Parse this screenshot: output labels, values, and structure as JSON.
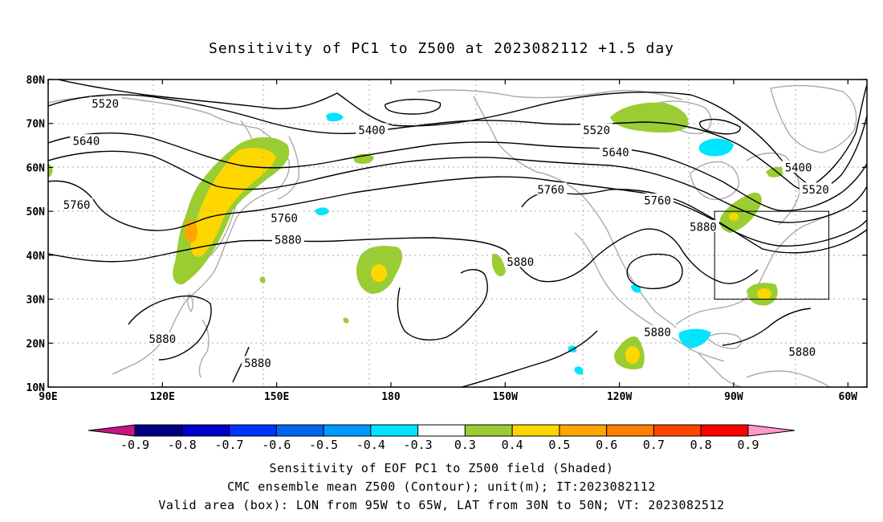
{
  "title": "Sensitivity of PC1 to Z500 at 2023082112 +1.5 day",
  "map": {
    "lat_labels": [
      "80N",
      "70N",
      "60N",
      "50N",
      "40N",
      "30N",
      "20N",
      "10N"
    ],
    "lon_labels": [
      "90E",
      "120E",
      "150E",
      "180",
      "150W",
      "120W",
      "90W",
      "60W"
    ],
    "contour_labels": [
      {
        "text": "5520",
        "lon": 105,
        "lat": 74.5
      },
      {
        "text": "5400",
        "lon": 175,
        "lat": 68.5
      },
      {
        "text": "5520",
        "lon": 234,
        "lat": 68.5
      },
      {
        "text": "5640",
        "lon": 100,
        "lat": 66
      },
      {
        "text": "5640",
        "lon": 239,
        "lat": 63.5
      },
      {
        "text": "5760",
        "lon": 222,
        "lat": 55
      },
      {
        "text": "5760",
        "lon": 250,
        "lat": 52.5
      },
      {
        "text": "5760",
        "lon": 97.5,
        "lat": 51.5
      },
      {
        "text": "5760",
        "lon": 152,
        "lat": 48.5
      },
      {
        "text": "5880",
        "lon": 153,
        "lat": 43.5
      },
      {
        "text": "5880",
        "lon": 262,
        "lat": 46.5
      },
      {
        "text": "5880",
        "lon": 214,
        "lat": 38.5
      },
      {
        "text": "5400",
        "lon": 287,
        "lat": 60
      },
      {
        "text": "5520",
        "lon": 291.5,
        "lat": 55
      },
      {
        "text": "5880",
        "lon": 250,
        "lat": 22.5
      },
      {
        "text": "5880",
        "lon": 120,
        "lat": 21
      },
      {
        "text": "5880",
        "lon": 145,
        "lat": 15.5
      },
      {
        "text": "5880",
        "lon": 288,
        "lat": 18
      }
    ],
    "valid_box": {
      "lon_min": 265,
      "lon_max": 295,
      "lat_min": 30,
      "lat_max": 50
    }
  },
  "colorbar": {
    "labels": [
      "-0.9",
      "-0.8",
      "-0.7",
      "-0.6",
      "-0.5",
      "-0.4",
      "-0.3",
      "0.3",
      "0.4",
      "0.5",
      "0.6",
      "0.7",
      "0.8",
      "0.9"
    ],
    "colors": [
      "#000080",
      "#0000cd",
      "#0033ff",
      "#0066ee",
      "#0099ff",
      "#00e5ff",
      "#ffffff",
      "#9acd32",
      "#ffd700",
      "#ffa500",
      "#ff7f00",
      "#ff4500",
      "#ff0000"
    ],
    "low_end_color": "#c71585",
    "high_end_color": "#ff99cc"
  },
  "captions": [
    "Sensitivity of EOF PC1 to Z500 field (Shaded)",
    "CMC ensemble mean Z500 (Contour); unit(m); IT:2023082112",
    "Valid area (box): LON from 95W to 65W, LAT from 30N to 50N; VT: 2023082512"
  ]
}
